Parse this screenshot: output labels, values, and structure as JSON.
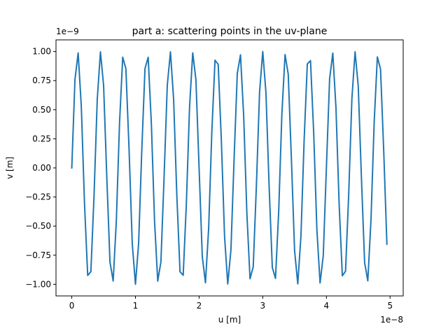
{
  "chart_data": {
    "type": "line",
    "title": "part a: scattering points in the uv-plane",
    "xlabel": "u [m]",
    "ylabel": "v [m]",
    "x_offset_label": "1e−8",
    "y_offset_label": "1e−9",
    "xlim": [
      -0.248,
      5.206
    ],
    "ylim": [
      -1.1,
      1.1
    ],
    "x_ticks": [
      0,
      1,
      2,
      3,
      4,
      5
    ],
    "x_tick_labels": [
      "0",
      "1",
      "2",
      "3",
      "4",
      "5"
    ],
    "y_ticks": [
      -1.0,
      -0.75,
      -0.5,
      -0.25,
      0.0,
      0.25,
      0.5,
      0.75,
      1.0
    ],
    "y_tick_labels": [
      "−1.00",
      "−0.75",
      "−0.50",
      "−0.25",
      "0.00",
      "0.25",
      "0.50",
      "0.75",
      "1.00"
    ],
    "grid": false,
    "line_color": "#1f77b4",
    "series": [
      {
        "u_start": 0,
        "u_step": 0.05,
        "num_points": 100,
        "v_amplitude": 1.0,
        "period": 0.3636
      }
    ]
  }
}
